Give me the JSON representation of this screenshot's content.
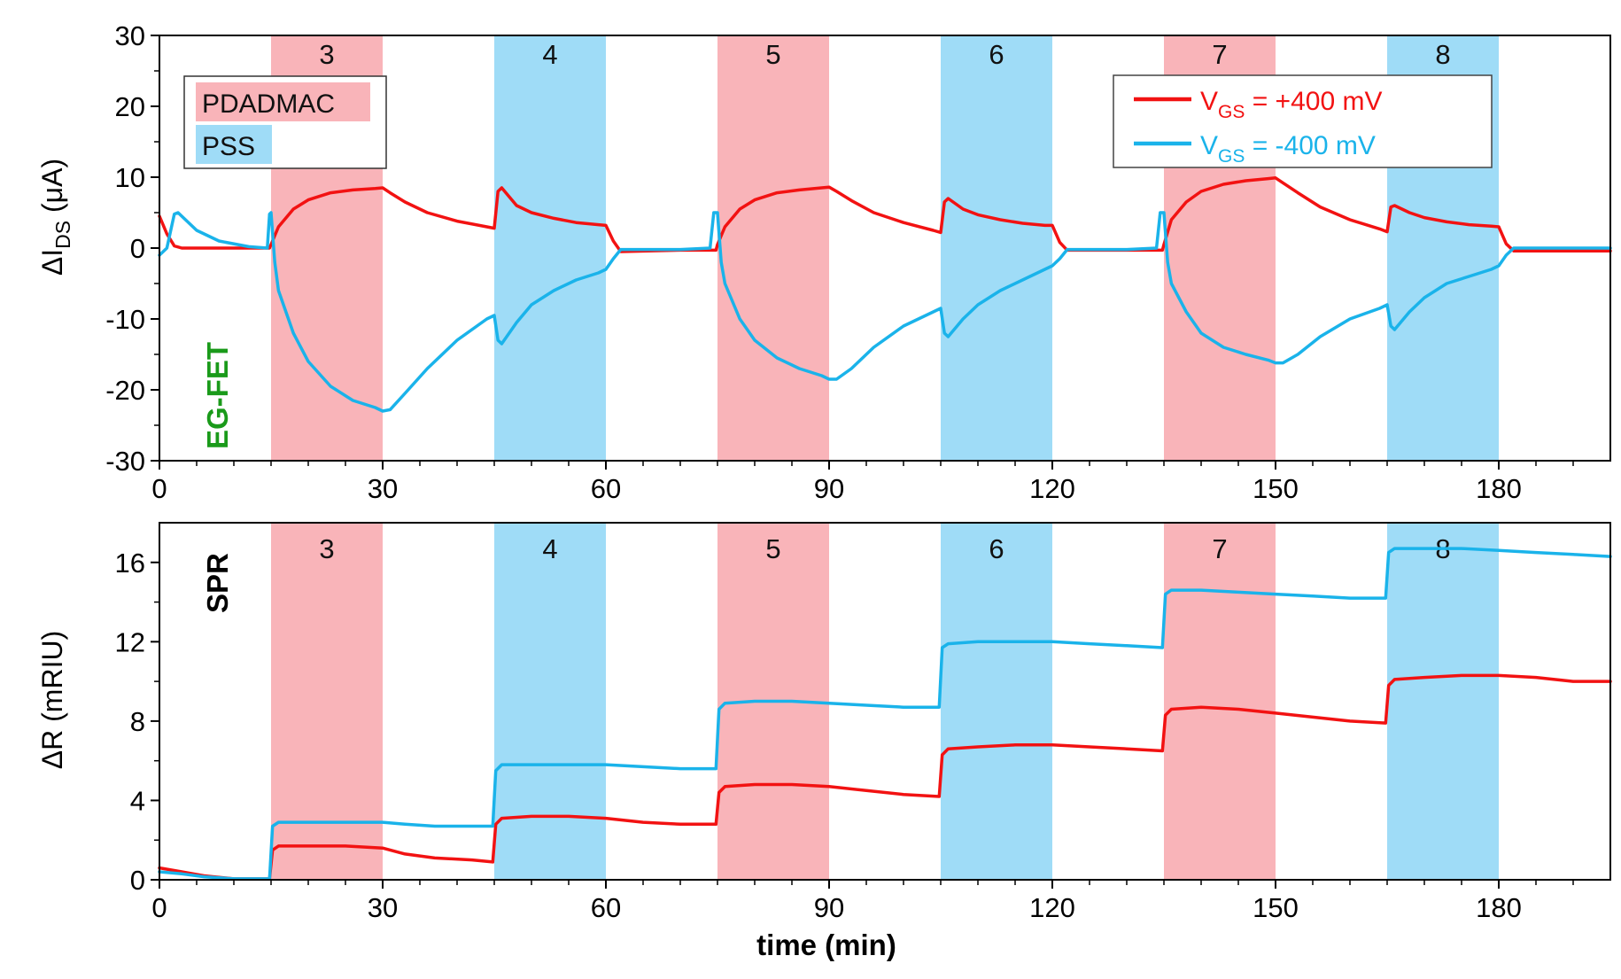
{
  "colors": {
    "red": "#f21212",
    "blue": "#1ab3ea",
    "pink": "#f9b4b9",
    "cyan": "#9fdcf7"
  },
  "xlabel": "time (min)",
  "chart_data": [
    {
      "type": "line",
      "panel": "top",
      "tag": "EG-FET",
      "ylabel": {
        "main": "ΔI",
        "sub": "DS",
        "unit": " (μA)"
      },
      "xlim": [
        0,
        195
      ],
      "ylim": [
        -30,
        30
      ],
      "xticks": [
        0,
        30,
        60,
        90,
        120,
        150,
        180
      ],
      "yticks": [
        -30,
        -20,
        -10,
        0,
        10,
        20,
        30
      ],
      "layers": [
        {
          "label": "3",
          "start": 15,
          "end": 30,
          "kind": "PDADMAC"
        },
        {
          "label": "4",
          "start": 45,
          "end": 60,
          "kind": "PSS"
        },
        {
          "label": "5",
          "start": 75,
          "end": 90,
          "kind": "PDADMAC"
        },
        {
          "label": "6",
          "start": 105,
          "end": 120,
          "kind": "PSS"
        },
        {
          "label": "7",
          "start": 135,
          "end": 150,
          "kind": "PDADMAC"
        },
        {
          "label": "8",
          "start": 165,
          "end": 180,
          "kind": "PSS"
        }
      ],
      "legend_solutions": [
        "PDADMAC",
        "PSS"
      ],
      "series": [
        {
          "name": "VGS = +400 mV",
          "vgs_label": "V",
          "vgs_sub": "GS",
          "vgs_value": " = +400 mV",
          "color": "red",
          "x": [
            0,
            1,
            2,
            3,
            5,
            8,
            12,
            14.8,
            15,
            16,
            18,
            20,
            23,
            26,
            29,
            30,
            31,
            33,
            36,
            40,
            44,
            45,
            45.5,
            46,
            48,
            50,
            53,
            56,
            59,
            60,
            61,
            62,
            70,
            74.8,
            75,
            76,
            78,
            80,
            83,
            86,
            89,
            90,
            91,
            93,
            96,
            100,
            104,
            105,
            105.5,
            106,
            108,
            110,
            113,
            116,
            119,
            120,
            121,
            122,
            130,
            134.8,
            135,
            136,
            138,
            140,
            143,
            146,
            149,
            150,
            151,
            153,
            156,
            160,
            164,
            165,
            165.5,
            166,
            168,
            170,
            173,
            176,
            179,
            180,
            181,
            182,
            190,
            195
          ],
          "y": [
            4.5,
            2,
            0.3,
            0,
            0,
            0,
            0,
            0,
            0.5,
            3,
            5.5,
            6.8,
            7.8,
            8.2,
            8.4,
            8.5,
            7.8,
            6.5,
            5,
            3.8,
            3,
            2.8,
            8,
            8.5,
            6,
            5,
            4.2,
            3.6,
            3.3,
            3.2,
            1,
            -0.5,
            -0.3,
            -0.3,
            0.5,
            3,
            5.5,
            6.8,
            7.8,
            8.2,
            8.5,
            8.6,
            8,
            6.7,
            5,
            3.6,
            2.5,
            2.2,
            6.5,
            7,
            5.5,
            4.7,
            4,
            3.5,
            3.2,
            3.2,
            0.8,
            -0.3,
            -0.3,
            -0.3,
            0.5,
            4,
            6.5,
            8,
            9,
            9.5,
            9.8,
            9.9,
            9.2,
            7.8,
            5.8,
            4,
            2.7,
            2.3,
            5.8,
            6,
            5,
            4.3,
            3.7,
            3.3,
            3.1,
            3,
            0.6,
            -0.4,
            -0.4,
            -0.4
          ]
        },
        {
          "name": "VGS = -400 mV",
          "vgs_label": "V",
          "vgs_sub": "GS",
          "vgs_value": " = -400 mV",
          "color": "blue",
          "x": [
            0,
            1,
            2,
            2.5,
            3,
            5,
            8,
            12,
            14.5,
            14.8,
            15,
            15.5,
            16,
            18,
            20,
            23,
            26,
            29,
            30,
            31,
            33,
            36,
            40,
            44,
            45,
            45.5,
            46,
            48,
            50,
            53,
            56,
            59,
            60,
            61,
            62,
            70,
            74,
            74.5,
            75,
            75.5,
            76,
            78,
            80,
            83,
            86,
            89,
            90,
            91,
            93,
            96,
            100,
            104,
            105,
            105.5,
            106,
            108,
            110,
            113,
            116,
            119,
            120,
            121,
            122,
            130,
            134,
            134.5,
            135,
            135.5,
            136,
            138,
            140,
            143,
            146,
            149,
            150,
            151,
            153,
            156,
            160,
            164,
            165,
            165.5,
            166,
            168,
            170,
            173,
            176,
            179,
            180,
            181,
            182,
            190,
            195
          ],
          "y": [
            -1,
            0,
            4.8,
            5,
            4.5,
            2.5,
            1,
            0.2,
            0,
            4.8,
            5,
            -2,
            -6,
            -12,
            -16,
            -19.5,
            -21.5,
            -22.5,
            -23,
            -22.8,
            -20.5,
            -17,
            -13,
            -10,
            -9.5,
            -13,
            -13.5,
            -10.5,
            -8,
            -6,
            -4.5,
            -3.5,
            -3,
            -1.5,
            -0.2,
            -0.2,
            0,
            5,
            5,
            -2,
            -5,
            -10,
            -13,
            -15.5,
            -17,
            -18,
            -18.5,
            -18.5,
            -17,
            -14,
            -11,
            -9,
            -8.5,
            -12,
            -12.5,
            -10,
            -8,
            -6,
            -4.5,
            -3,
            -2.5,
            -1.5,
            -0.2,
            -0.2,
            0,
            5,
            5,
            -2,
            -5,
            -9,
            -12,
            -14,
            -15,
            -15.8,
            -16.2,
            -16.2,
            -15,
            -12.5,
            -10,
            -8.5,
            -8,
            -11,
            -11.5,
            -9,
            -7,
            -5,
            -4,
            -3,
            -2.5,
            -1,
            0,
            0,
            0
          ]
        }
      ]
    },
    {
      "type": "line",
      "panel": "bottom",
      "tag": "SPR",
      "ylabel": {
        "main": "ΔR",
        "sub": "",
        "unit": " (mRIU)"
      },
      "xlim": [
        0,
        195
      ],
      "ylim": [
        0,
        18
      ],
      "xticks": [
        0,
        30,
        60,
        90,
        120,
        150,
        180
      ],
      "yticks": [
        0,
        4,
        8,
        12,
        16
      ],
      "layers": [
        {
          "label": "3",
          "start": 15,
          "end": 30,
          "kind": "PDADMAC"
        },
        {
          "label": "4",
          "start": 45,
          "end": 60,
          "kind": "PSS"
        },
        {
          "label": "5",
          "start": 75,
          "end": 90,
          "kind": "PDADMAC"
        },
        {
          "label": "6",
          "start": 105,
          "end": 120,
          "kind": "PSS"
        },
        {
          "label": "7",
          "start": 135,
          "end": 150,
          "kind": "PDADMAC"
        },
        {
          "label": "8",
          "start": 165,
          "end": 180,
          "kind": "PSS"
        }
      ],
      "series": [
        {
          "name": "VGS = +400 mV",
          "color": "red",
          "x": [
            0,
            3,
            6,
            10,
            14.8,
            15.2,
            16,
            20,
            25,
            30,
            33,
            37,
            42,
            44.8,
            45.2,
            46,
            50,
            55,
            60,
            65,
            70,
            74.8,
            75.2,
            76,
            80,
            85,
            90,
            95,
            100,
            104.8,
            105.2,
            106,
            110,
            115,
            120,
            125,
            130,
            134.8,
            135.2,
            136,
            140,
            145,
            150,
            155,
            160,
            164.8,
            165.2,
            166,
            170,
            175,
            180,
            185,
            190,
            195
          ],
          "y": [
            0.6,
            0.4,
            0.2,
            0.05,
            0.05,
            1.5,
            1.7,
            1.7,
            1.7,
            1.6,
            1.3,
            1.1,
            1,
            0.9,
            2.8,
            3.1,
            3.2,
            3.2,
            3.1,
            2.9,
            2.8,
            2.8,
            4.4,
            4.7,
            4.8,
            4.8,
            4.7,
            4.5,
            4.3,
            4.2,
            6.3,
            6.6,
            6.7,
            6.8,
            6.8,
            6.7,
            6.6,
            6.5,
            8.3,
            8.6,
            8.7,
            8.6,
            8.4,
            8.2,
            8,
            7.9,
            9.8,
            10.1,
            10.2,
            10.3,
            10.3,
            10.2,
            10,
            10
          ]
        },
        {
          "name": "VGS = -400 mV",
          "color": "blue",
          "x": [
            0,
            3,
            6,
            10,
            14.8,
            15.2,
            16,
            20,
            25,
            30,
            33,
            37,
            42,
            44.8,
            45.2,
            46,
            50,
            55,
            60,
            65,
            70,
            74.8,
            75.2,
            76,
            80,
            85,
            90,
            95,
            100,
            104.8,
            105.2,
            106,
            110,
            115,
            120,
            125,
            130,
            134.8,
            135.2,
            136,
            140,
            145,
            150,
            155,
            160,
            164.8,
            165.2,
            166,
            170,
            175,
            180,
            185,
            190,
            195
          ],
          "y": [
            0.4,
            0.3,
            0.15,
            0.05,
            0.05,
            2.7,
            2.9,
            2.9,
            2.9,
            2.9,
            2.8,
            2.7,
            2.7,
            2.7,
            5.5,
            5.8,
            5.8,
            5.8,
            5.8,
            5.7,
            5.6,
            5.6,
            8.6,
            8.9,
            9,
            9,
            8.9,
            8.8,
            8.7,
            8.7,
            11.7,
            11.9,
            12,
            12,
            12,
            11.9,
            11.8,
            11.7,
            14.4,
            14.6,
            14.6,
            14.5,
            14.4,
            14.3,
            14.2,
            14.2,
            16.5,
            16.7,
            16.7,
            16.7,
            16.6,
            16.5,
            16.4,
            16.3
          ]
        }
      ]
    }
  ]
}
